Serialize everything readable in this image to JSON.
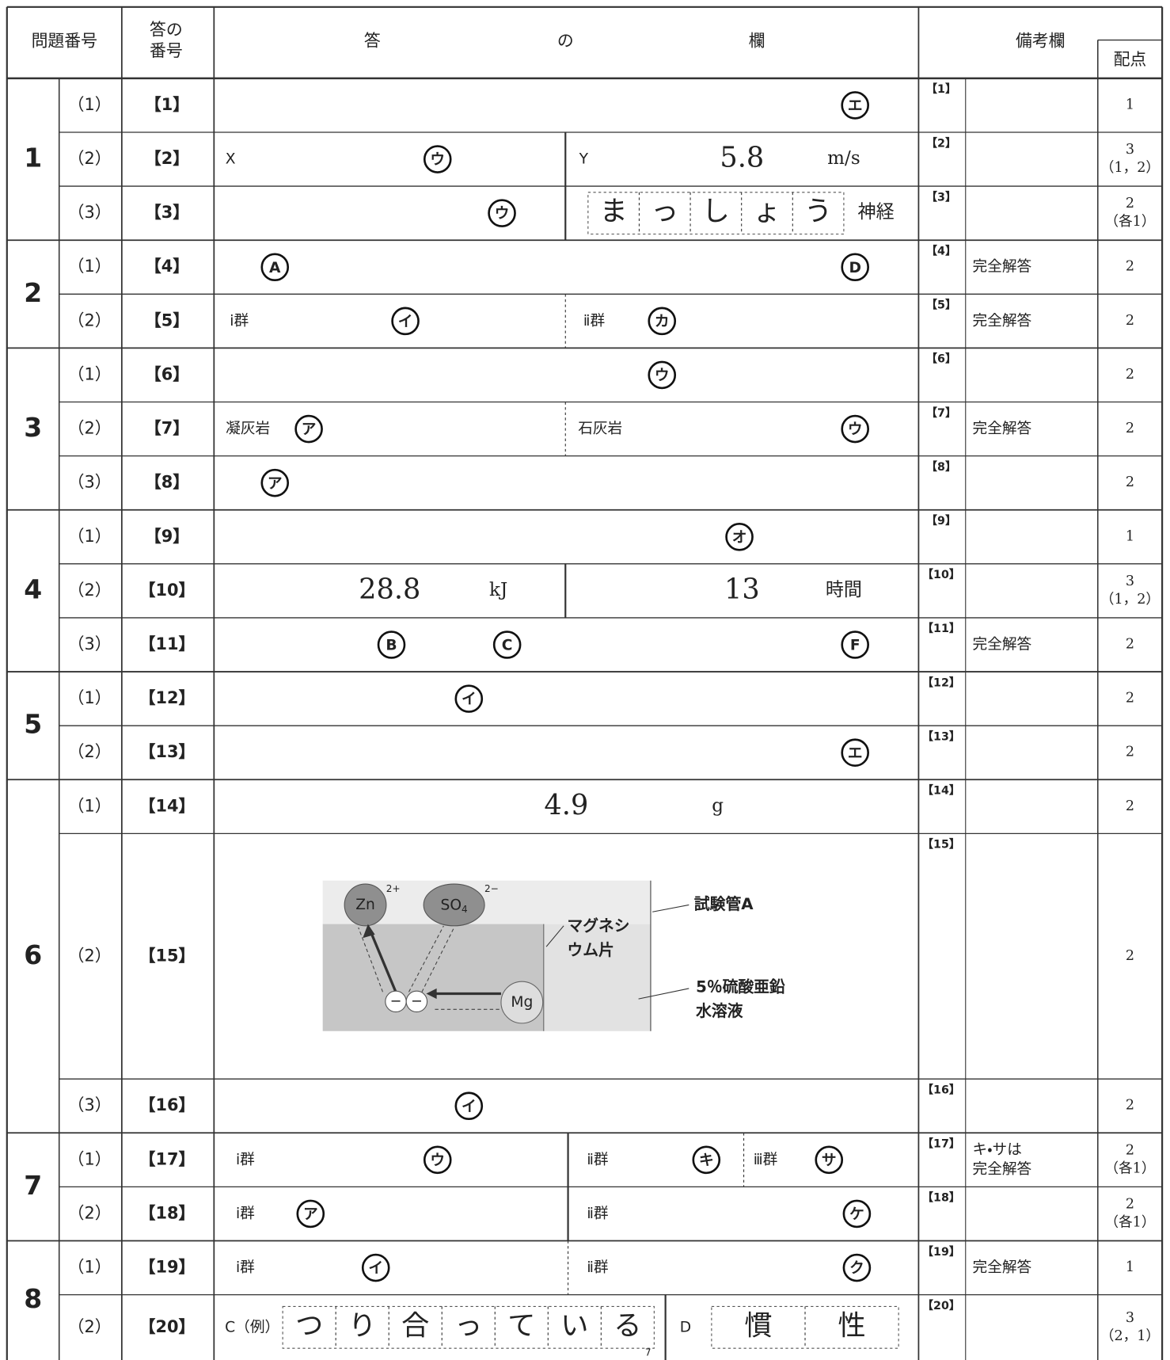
{
  "header": {
    "question_number": "問題番号",
    "answer_number": [
      "答の",
      "番号"
    ],
    "answer_column": [
      "答",
      "の",
      "欄"
    ],
    "remarks": "備考欄",
    "points": "配点"
  },
  "sections": [
    {
      "number": "1",
      "rows": [
        {
          "sub": "（1）",
          "answer_number": "【1】",
          "answer": [
            {
              "choice": "エ"
            }
          ],
          "remark_number": "【1】",
          "points": [
            "1"
          ]
        },
        {
          "sub": "（2）",
          "answer_number": "【2】",
          "answer": [
            {
              "label": "X"
            },
            {
              "choice": "ウ"
            },
            {
              "label": "Y"
            },
            {
              "value": "5.8"
            },
            {
              "unit": "m/s"
            }
          ],
          "remark_number": "【2】",
          "points": [
            "3",
            "（1，2）"
          ]
        },
        {
          "sub": "（3）",
          "answer_number": "【3】",
          "answer": [
            {
              "choice": "ウ"
            },
            {
              "boxes": [
                "ま",
                "っ",
                "し",
                "ょ",
                "う"
              ]
            },
            {
              "unit": "神経"
            }
          ],
          "remark_number": "【3】",
          "points": [
            "2",
            "（各1）"
          ]
        }
      ]
    },
    {
      "number": "2",
      "rows": [
        {
          "sub": "（1）",
          "answer_number": "【4】",
          "answer": [
            {
              "choice": "A"
            },
            {
              "choice": "D"
            }
          ],
          "remark_number": "【4】",
          "remark": [
            "完全解答"
          ],
          "points": [
            "2"
          ]
        },
        {
          "sub": "（2）",
          "answer_number": "【5】",
          "answer": [
            {
              "label": "ⅰ群"
            },
            {
              "choice": "イ"
            },
            {
              "label": "ⅱ群"
            },
            {
              "choice": "カ"
            }
          ],
          "remark_number": "【5】",
          "remark": [
            "完全解答"
          ],
          "points": [
            "2"
          ]
        }
      ]
    },
    {
      "number": "3",
      "rows": [
        {
          "sub": "（1）",
          "answer_number": "【6】",
          "answer": [
            {
              "choice": "ウ"
            }
          ],
          "remark_number": "【6】",
          "points": [
            "2"
          ]
        },
        {
          "sub": "（2）",
          "answer_number": "【7】",
          "answer": [
            {
              "label": "凝灰岩"
            },
            {
              "choice": "ア"
            },
            {
              "label": "石灰岩"
            },
            {
              "choice": "ウ"
            }
          ],
          "remark_number": "【7】",
          "remark": [
            "完全解答"
          ],
          "points": [
            "2"
          ]
        },
        {
          "sub": "（3）",
          "answer_number": "【8】",
          "answer": [
            {
              "choice": "ア"
            }
          ],
          "remark_number": "【8】",
          "points": [
            "2"
          ]
        }
      ]
    },
    {
      "number": "4",
      "rows": [
        {
          "sub": "（1）",
          "answer_number": "【9】",
          "answer": [
            {
              "choice": "オ"
            }
          ],
          "remark_number": "【9】",
          "points": [
            "1"
          ]
        },
        {
          "sub": "（2）",
          "answer_number": "【10】",
          "answer": [
            {
              "value": "28.8"
            },
            {
              "unit": "kJ"
            },
            {
              "value": "13"
            },
            {
              "unit": "時間"
            }
          ],
          "remark_number": "【10】",
          "points": [
            "3",
            "（1，2）"
          ]
        },
        {
          "sub": "（3）",
          "answer_number": "【11】",
          "answer": [
            {
              "choice": "B"
            },
            {
              "choice": "C"
            },
            {
              "choice": "F"
            }
          ],
          "remark_number": "【11】",
          "remark": [
            "完全解答"
          ],
          "points": [
            "2"
          ]
        }
      ]
    },
    {
      "number": "5",
      "rows": [
        {
          "sub": "（1）",
          "answer_number": "【12】",
          "answer": [
            {
              "choice": "イ"
            }
          ],
          "remark_number": "【12】",
          "points": [
            "2"
          ]
        },
        {
          "sub": "（2）",
          "answer_number": "【13】",
          "answer": [
            {
              "choice": "エ"
            }
          ],
          "remark_number": "【13】",
          "points": [
            "2"
          ]
        }
      ]
    },
    {
      "number": "6",
      "rows": [
        {
          "sub": "（1）",
          "answer_number": "【14】",
          "answer": [
            {
              "value": "4.9"
            },
            {
              "unit": "g"
            }
          ],
          "remark_number": "【14】",
          "points": [
            "2"
          ]
        },
        {
          "sub": "（2）",
          "answer_number": "【15】",
          "figure": {
            "zn": "Zn",
            "zn_charge": "2+",
            "so4": [
              "SO",
              "4"
            ],
            "so4_charge": "2−",
            "electron": "−",
            "mg": "Mg",
            "test_tube": "試験管A",
            "magnesium": [
              "マグネシ",
              "ウム片"
            ],
            "solution": [
              "5％硫酸亜鉛",
              "水溶液"
            ]
          },
          "remark_number": "【15】",
          "points": [
            "2"
          ]
        },
        {
          "sub": "（3）",
          "answer_number": "【16】",
          "answer": [
            {
              "choice": "イ"
            }
          ],
          "remark_number": "【16】",
          "points": [
            "2"
          ]
        }
      ]
    },
    {
      "number": "7",
      "rows": [
        {
          "sub": "（1）",
          "answer_number": "【17】",
          "answer": [
            {
              "label": "ⅰ群"
            },
            {
              "choice": "ウ"
            },
            {
              "label": "ⅱ群"
            },
            {
              "choice": "キ"
            },
            {
              "label": "ⅲ群"
            },
            {
              "choice": "サ"
            }
          ],
          "remark_number": "【17】",
          "remark": [
            "キ・サは",
            "完全解答"
          ],
          "points": [
            "2",
            "（各1）"
          ]
        },
        {
          "sub": "（2）",
          "answer_number": "【18】",
          "answer": [
            {
              "label": "ⅰ群"
            },
            {
              "choice": "ア"
            },
            {
              "label": "ⅱ群"
            },
            {
              "choice": "ケ"
            }
          ],
          "remark_number": "【18】",
          "points": [
            "2",
            "（各1）"
          ]
        }
      ]
    },
    {
      "number": "8",
      "rows": [
        {
          "sub": "（1）",
          "answer_number": "【19】",
          "answer": [
            {
              "label": "ⅰ群"
            },
            {
              "choice": "イ"
            },
            {
              "label": "ⅱ群"
            },
            {
              "choice": "ク"
            }
          ],
          "remark_number": "【19】",
          "remark": [
            "完全解答"
          ],
          "points": [
            "1"
          ]
        },
        {
          "sub": "（2）",
          "answer_number": "【20】",
          "answer": [
            {
              "label": "C（例）"
            },
            {
              "boxes": [
                "つ",
                "り",
                "合",
                "っ",
                "て",
                "い",
                "る"
              ]
            },
            {
              "note": "7"
            },
            {
              "label": "D"
            },
            {
              "boxes": [
                "慣",
                "性"
              ]
            }
          ],
          "remark_number": "【20】",
          "points": [
            "3",
            "（2，1）"
          ]
        }
      ]
    }
  ]
}
